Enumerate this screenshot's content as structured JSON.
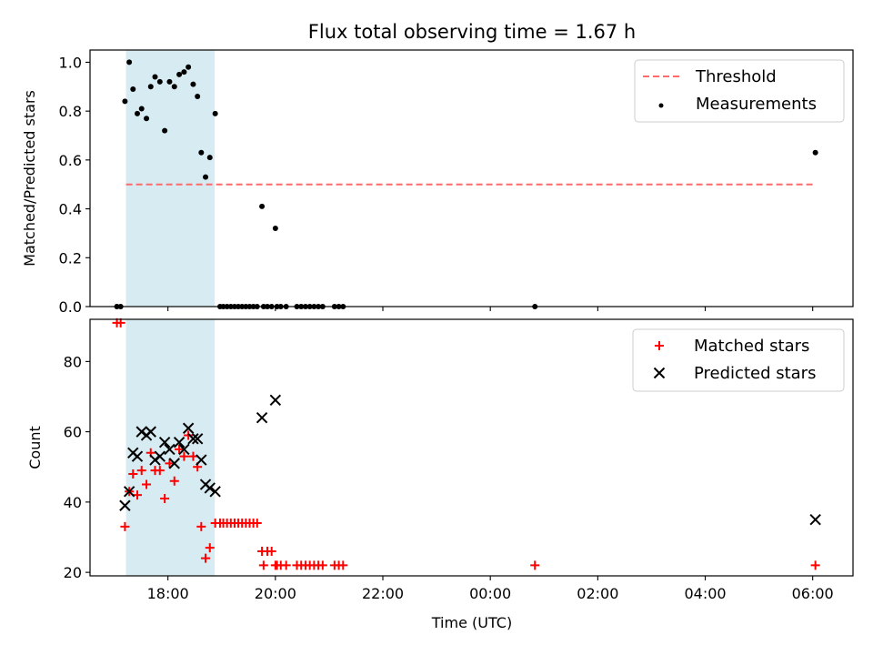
{
  "title": "Flux total observing time = 1.67 h",
  "chart_data": [
    {
      "type": "scatter",
      "panel": "top",
      "ylabel": "Matched/Predicted stars",
      "xlabel": "",
      "x_unit": "hours UTC (values beyond 24 = next day)",
      "xlim": [
        16.55,
        30.75
      ],
      "ylim": [
        0,
        1.05
      ],
      "yticks": [
        0.0,
        0.2,
        0.4,
        0.6,
        0.8,
        1.0
      ],
      "ytick_labels": [
        "0.0",
        "0.2",
        "0.4",
        "0.6",
        "0.8",
        "1.0"
      ],
      "xticks": [
        18,
        20,
        22,
        24,
        26,
        28,
        30
      ],
      "xtick_labels": [
        "",
        "",
        "",
        "",
        "",
        "",
        ""
      ],
      "shaded_span": {
        "x0": 17.22,
        "x1": 18.87,
        "color": "#add8e6"
      },
      "threshold": {
        "name": "Threshold",
        "value": 0.5,
        "x0": 17.22,
        "x1": 30.05,
        "color": "#ff6a6a"
      },
      "series": [
        {
          "name": "Measurements",
          "color": "#000000",
          "marker": "dot",
          "points": [
            [
              17.05,
              0
            ],
            [
              17.12,
              0
            ],
            [
              17.2,
              0.84
            ],
            [
              17.28,
              1.0
            ],
            [
              17.35,
              0.89
            ],
            [
              17.43,
              0.79
            ],
            [
              17.51,
              0.81
            ],
            [
              17.6,
              0.77
            ],
            [
              17.68,
              0.9
            ],
            [
              17.76,
              0.94
            ],
            [
              17.85,
              0.92
            ],
            [
              17.94,
              0.72
            ],
            [
              18.03,
              0.92
            ],
            [
              18.12,
              0.9
            ],
            [
              18.21,
              0.95
            ],
            [
              18.3,
              0.96
            ],
            [
              18.38,
              0.98
            ],
            [
              18.47,
              0.91
            ],
            [
              18.55,
              0.86
            ],
            [
              18.62,
              0.63
            ],
            [
              18.7,
              0.53
            ],
            [
              18.78,
              0.61
            ],
            [
              18.88,
              0.79
            ],
            [
              18.97,
              0
            ],
            [
              19.03,
              0
            ],
            [
              19.1,
              0
            ],
            [
              19.17,
              0
            ],
            [
              19.24,
              0
            ],
            [
              19.31,
              0
            ],
            [
              19.38,
              0
            ],
            [
              19.45,
              0
            ],
            [
              19.52,
              0
            ],
            [
              19.59,
              0
            ],
            [
              19.66,
              0
            ],
            [
              19.75,
              0.41
            ],
            [
              19.78,
              0
            ],
            [
              19.85,
              0
            ],
            [
              19.93,
              0
            ],
            [
              20.0,
              0.32
            ],
            [
              20.03,
              0
            ],
            [
              20.1,
              0
            ],
            [
              20.2,
              0
            ],
            [
              20.4,
              0
            ],
            [
              20.48,
              0
            ],
            [
              20.56,
              0
            ],
            [
              20.64,
              0
            ],
            [
              20.72,
              0
            ],
            [
              20.8,
              0
            ],
            [
              20.88,
              0
            ],
            [
              21.1,
              0
            ],
            [
              21.18,
              0
            ],
            [
              21.26,
              0
            ],
            [
              24.83,
              0
            ],
            [
              30.05,
              0.63
            ]
          ]
        }
      ],
      "legend": {
        "position": "upper right",
        "entries": [
          {
            "label": "Threshold",
            "symbol": "dashed-line",
            "color": "#ff6a6a"
          },
          {
            "label": "Measurements",
            "symbol": "dot",
            "color": "#000000"
          }
        ]
      }
    },
    {
      "type": "scatter",
      "panel": "bottom",
      "xlabel": "Time (UTC)",
      "ylabel": "Count",
      "x_unit": "hours UTC (values beyond 24 = next day)",
      "xlim": [
        16.55,
        30.75
      ],
      "ylim": [
        19,
        92
      ],
      "yticks": [
        20,
        40,
        60,
        80
      ],
      "ytick_labels": [
        "20",
        "40",
        "60",
        "80"
      ],
      "xticks": [
        18,
        20,
        22,
        24,
        26,
        28,
        30
      ],
      "xtick_labels": [
        "18:00",
        "20:00",
        "22:00",
        "00:00",
        "02:00",
        "04:00",
        "06:00"
      ],
      "shaded_span": {
        "x0": 17.22,
        "x1": 18.87,
        "color": "#add8e6"
      },
      "series": [
        {
          "name": "Matched stars",
          "color": "#ff0000",
          "marker": "plus",
          "points": [
            [
              17.05,
              91
            ],
            [
              17.12,
              91
            ],
            [
              17.2,
              33
            ],
            [
              17.28,
              43
            ],
            [
              17.35,
              48
            ],
            [
              17.43,
              42
            ],
            [
              17.51,
              49
            ],
            [
              17.6,
              45
            ],
            [
              17.68,
              54
            ],
            [
              17.76,
              49
            ],
            [
              17.85,
              49
            ],
            [
              17.94,
              41
            ],
            [
              18.03,
              51
            ],
            [
              18.12,
              46
            ],
            [
              18.21,
              55
            ],
            [
              18.3,
              53
            ],
            [
              18.38,
              59
            ],
            [
              18.47,
              53
            ],
            [
              18.55,
              50
            ],
            [
              18.62,
              33
            ],
            [
              18.7,
              24
            ],
            [
              18.78,
              27
            ],
            [
              18.88,
              34
            ],
            [
              18.97,
              34
            ],
            [
              19.03,
              34
            ],
            [
              19.1,
              34
            ],
            [
              19.17,
              34
            ],
            [
              19.24,
              34
            ],
            [
              19.31,
              34
            ],
            [
              19.38,
              34
            ],
            [
              19.45,
              34
            ],
            [
              19.52,
              34
            ],
            [
              19.59,
              34
            ],
            [
              19.66,
              34
            ],
            [
              19.75,
              26
            ],
            [
              19.78,
              22
            ],
            [
              19.85,
              26
            ],
            [
              19.93,
              26
            ],
            [
              20.0,
              22
            ],
            [
              20.03,
              22
            ],
            [
              20.1,
              22
            ],
            [
              20.2,
              22
            ],
            [
              20.4,
              22
            ],
            [
              20.48,
              22
            ],
            [
              20.56,
              22
            ],
            [
              20.64,
              22
            ],
            [
              20.72,
              22
            ],
            [
              20.8,
              22
            ],
            [
              20.88,
              22
            ],
            [
              21.1,
              22
            ],
            [
              21.18,
              22
            ],
            [
              21.26,
              22
            ],
            [
              24.83,
              22
            ],
            [
              30.05,
              22
            ]
          ]
        },
        {
          "name": "Predicted stars",
          "color": "#000000",
          "marker": "x",
          "points": [
            [
              17.2,
              39
            ],
            [
              17.28,
              43
            ],
            [
              17.35,
              54
            ],
            [
              17.43,
              53
            ],
            [
              17.51,
              60
            ],
            [
              17.6,
              59
            ],
            [
              17.68,
              60
            ],
            [
              17.76,
              52
            ],
            [
              17.85,
              53
            ],
            [
              17.94,
              57
            ],
            [
              18.03,
              55
            ],
            [
              18.12,
              51
            ],
            [
              18.21,
              57
            ],
            [
              18.3,
              55
            ],
            [
              18.38,
              61
            ],
            [
              18.47,
              58
            ],
            [
              18.55,
              58
            ],
            [
              18.62,
              52
            ],
            [
              18.7,
              45
            ],
            [
              18.78,
              44
            ],
            [
              18.88,
              43
            ],
            [
              19.75,
              64
            ],
            [
              20.0,
              69
            ],
            [
              30.05,
              35
            ]
          ]
        }
      ],
      "legend": {
        "position": "upper right",
        "entries": [
          {
            "label": "Matched stars",
            "symbol": "plus",
            "color": "#ff0000"
          },
          {
            "label": "Predicted stars",
            "symbol": "x",
            "color": "#000000"
          }
        ]
      }
    }
  ]
}
